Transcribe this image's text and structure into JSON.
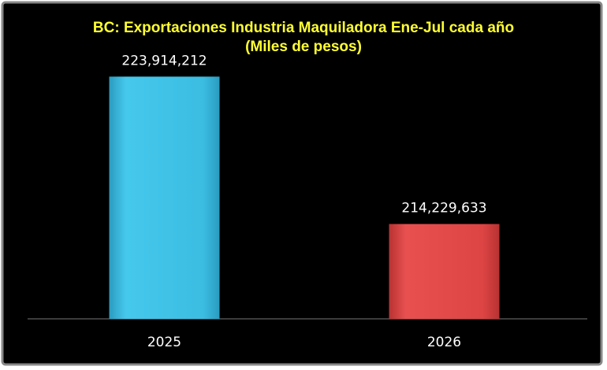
{
  "chart_data": {
    "type": "bar",
    "title": "BC: Exportaciones Industria Maquiladora Ene-Jul cada año",
    "subtitle": "(Miles de pesos)",
    "categories": [
      "2025",
      "2026"
    ],
    "values": [
      223914212,
      214229633
    ],
    "value_labels": [
      "223,914,212",
      "214,229,633"
    ],
    "colors": [
      "#3bbde2",
      "#dd4444"
    ],
    "ylim": [
      208000000,
      226000000
    ],
    "grid": false
  }
}
